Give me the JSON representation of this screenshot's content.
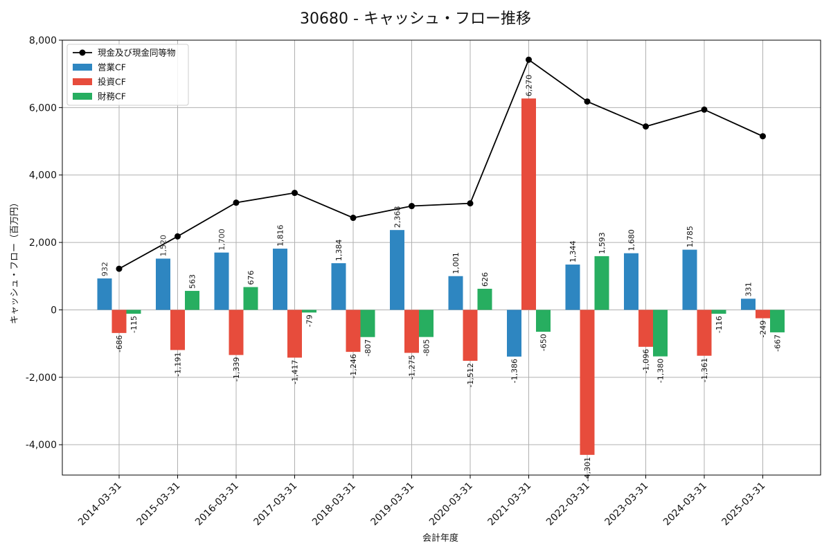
{
  "chart_data": {
    "type": "bar",
    "title": "30680 - キャッシュ・フロー推移",
    "xlabel": "会計年度",
    "ylabel": "キャッシュ・フロー（百万円）",
    "ylim": [
      -4900,
      8000
    ],
    "yticks": [
      -4000,
      -2000,
      0,
      2000,
      4000,
      6000,
      8000
    ],
    "ytick_labels": [
      "-4,000",
      "-2,000",
      "0",
      "2,000",
      "4,000",
      "6,000",
      "8,000"
    ],
    "grid": true,
    "legend_position": "top-left",
    "categories": [
      "2014-03-31",
      "2015-03-31",
      "2016-03-31",
      "2017-03-31",
      "2018-03-31",
      "2019-03-31",
      "2020-03-31",
      "2021-03-31",
      "2022-03-31",
      "2023-03-31",
      "2024-03-31",
      "2025-03-31"
    ],
    "series": [
      {
        "name": "営業CF",
        "kind": "bar",
        "color": "#2e86c1",
        "values": [
          932,
          1520,
          1700,
          1816,
          1384,
          2368,
          1001,
          -1386,
          1344,
          1680,
          1785,
          331
        ],
        "labels": [
          "932",
          "1,520",
          "1,700",
          "1,816",
          "1,384",
          "2,368",
          "1,001",
          "-1,386",
          "1,344",
          "1,680",
          "1,785",
          "331"
        ]
      },
      {
        "name": "投資CF",
        "kind": "bar",
        "color": "#e74c3c",
        "values": [
          -686,
          -1191,
          -1339,
          -1417,
          -1246,
          -1275,
          -1512,
          6270,
          -4301,
          -1096,
          -1361,
          -249
        ],
        "labels": [
          "-686",
          "-1,191",
          "-1,339",
          "-1,417",
          "-1,246",
          "-1,275",
          "-1,512",
          "6,270",
          "-4,301",
          "-1,096",
          "-1,361",
          "-249"
        ]
      },
      {
        "name": "財務CF",
        "kind": "bar",
        "color": "#27ae60",
        "values": [
          -115,
          563,
          676,
          -79,
          -807,
          -805,
          626,
          -650,
          1593,
          -1380,
          -116,
          -667
        ],
        "labels": [
          "-115",
          "563",
          "676",
          "-79",
          "-807",
          "-805",
          "626",
          "-650",
          "1,593",
          "-1,380",
          "-116",
          "-667"
        ]
      },
      {
        "name": "現金及び現金同等物",
        "kind": "line",
        "color": "#000000",
        "values": [
          1220,
          2180,
          3180,
          3470,
          2730,
          3080,
          3160,
          7420,
          6180,
          5440,
          5940,
          5150
        ]
      }
    ]
  }
}
